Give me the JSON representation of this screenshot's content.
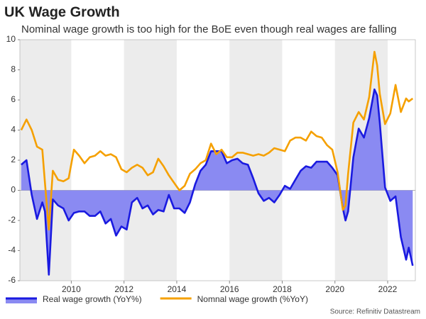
{
  "chart_data": {
    "type": "line",
    "title": "UK Wage Growth",
    "subtitle": "Nominal wage growth is too high for the BoE even though real wages are falling",
    "source": "Source: Refinitiv Datastream",
    "x": [
      2008.1,
      2008.3,
      2008.5,
      2008.7,
      2008.9,
      2009.0,
      2009.15,
      2009.3,
      2009.5,
      2009.7,
      2009.9,
      2010.1,
      2010.3,
      2010.5,
      2010.7,
      2010.9,
      2011.1,
      2011.3,
      2011.5,
      2011.7,
      2011.9,
      2012.1,
      2012.3,
      2012.5,
      2012.7,
      2012.9,
      2013.1,
      2013.3,
      2013.5,
      2013.7,
      2013.9,
      2014.1,
      2014.3,
      2014.5,
      2014.7,
      2014.9,
      2015.1,
      2015.3,
      2015.5,
      2015.7,
      2015.9,
      2016.1,
      2016.3,
      2016.5,
      2016.7,
      2016.9,
      2017.1,
      2017.3,
      2017.5,
      2017.7,
      2017.9,
      2018.1,
      2018.3,
      2018.5,
      2018.7,
      2018.9,
      2019.1,
      2019.3,
      2019.5,
      2019.7,
      2019.9,
      2020.1,
      2020.3,
      2020.4,
      2020.5,
      2020.7,
      2020.9,
      2021.1,
      2021.3,
      2021.5,
      2021.6,
      2021.7,
      2021.9,
      2022.1,
      2022.3,
      2022.5,
      2022.7,
      2022.8,
      2022.95
    ],
    "series": [
      {
        "name": "Real wage growth (YoY%)",
        "color": "#1a1ae0",
        "fill_color": "#8a8af2",
        "values": [
          1.7,
          2.0,
          -0.3,
          -1.9,
          -0.8,
          -1.4,
          -5.6,
          -0.6,
          -1.0,
          -1.2,
          -2.0,
          -1.5,
          -1.4,
          -1.4,
          -1.7,
          -1.7,
          -1.4,
          -2.2,
          -1.9,
          -3.0,
          -2.4,
          -2.6,
          -0.8,
          -0.5,
          -1.2,
          -1.0,
          -1.6,
          -1.3,
          -1.4,
          -0.3,
          -1.2,
          -1.2,
          -1.5,
          -0.8,
          0.4,
          1.3,
          1.7,
          2.6,
          2.6,
          2.6,
          1.8,
          2.0,
          2.1,
          1.8,
          1.7,
          0.8,
          -0.2,
          -0.7,
          -0.5,
          -0.8,
          -0.3,
          0.3,
          0.1,
          0.7,
          1.3,
          1.6,
          1.5,
          1.9,
          1.9,
          1.9,
          1.5,
          1.0,
          -1.2,
          -2.0,
          -1.4,
          2.2,
          4.1,
          3.5,
          4.8,
          6.7,
          6.3,
          4.5,
          0.2,
          -0.7,
          -0.4,
          -3.1,
          -4.6,
          -3.8,
          -5.0
        ]
      },
      {
        "name": "Nomnal wage growth (%YoY)",
        "color": "#f5a000",
        "values": [
          4.0,
          4.7,
          4.0,
          2.9,
          2.7,
          0.5,
          -2.6,
          1.3,
          0.7,
          0.6,
          0.8,
          2.7,
          2.3,
          1.8,
          2.2,
          2.3,
          2.6,
          2.3,
          2.4,
          2.2,
          1.4,
          1.2,
          1.5,
          1.7,
          1.5,
          1.0,
          1.2,
          2.1,
          1.6,
          1.0,
          0.5,
          0.0,
          0.3,
          1.1,
          1.4,
          1.8,
          2.0,
          3.1,
          2.4,
          2.7,
          2.2,
          2.2,
          2.5,
          2.5,
          2.4,
          2.3,
          2.4,
          2.3,
          2.5,
          2.8,
          2.7,
          2.6,
          3.3,
          3.5,
          3.5,
          3.3,
          3.9,
          3.6,
          3.5,
          3.0,
          2.7,
          1.2,
          -1.3,
          -1.0,
          1.1,
          4.5,
          5.2,
          4.7,
          6.2,
          9.2,
          8.3,
          6.4,
          4.4,
          5.1,
          7.0,
          5.2,
          6.1,
          5.9,
          6.1
        ]
      }
    ],
    "xlim": [
      2008.05,
      2023.05
    ],
    "xticks": [
      2010,
      2012,
      2014,
      2016,
      2018,
      2020,
      2022
    ],
    "ylim": [
      -6,
      10
    ],
    "yticks": [
      -6,
      -4,
      -2,
      0,
      2,
      4,
      6,
      8,
      10
    ],
    "shade_color": "#ececec",
    "legend": "bottom-left"
  }
}
